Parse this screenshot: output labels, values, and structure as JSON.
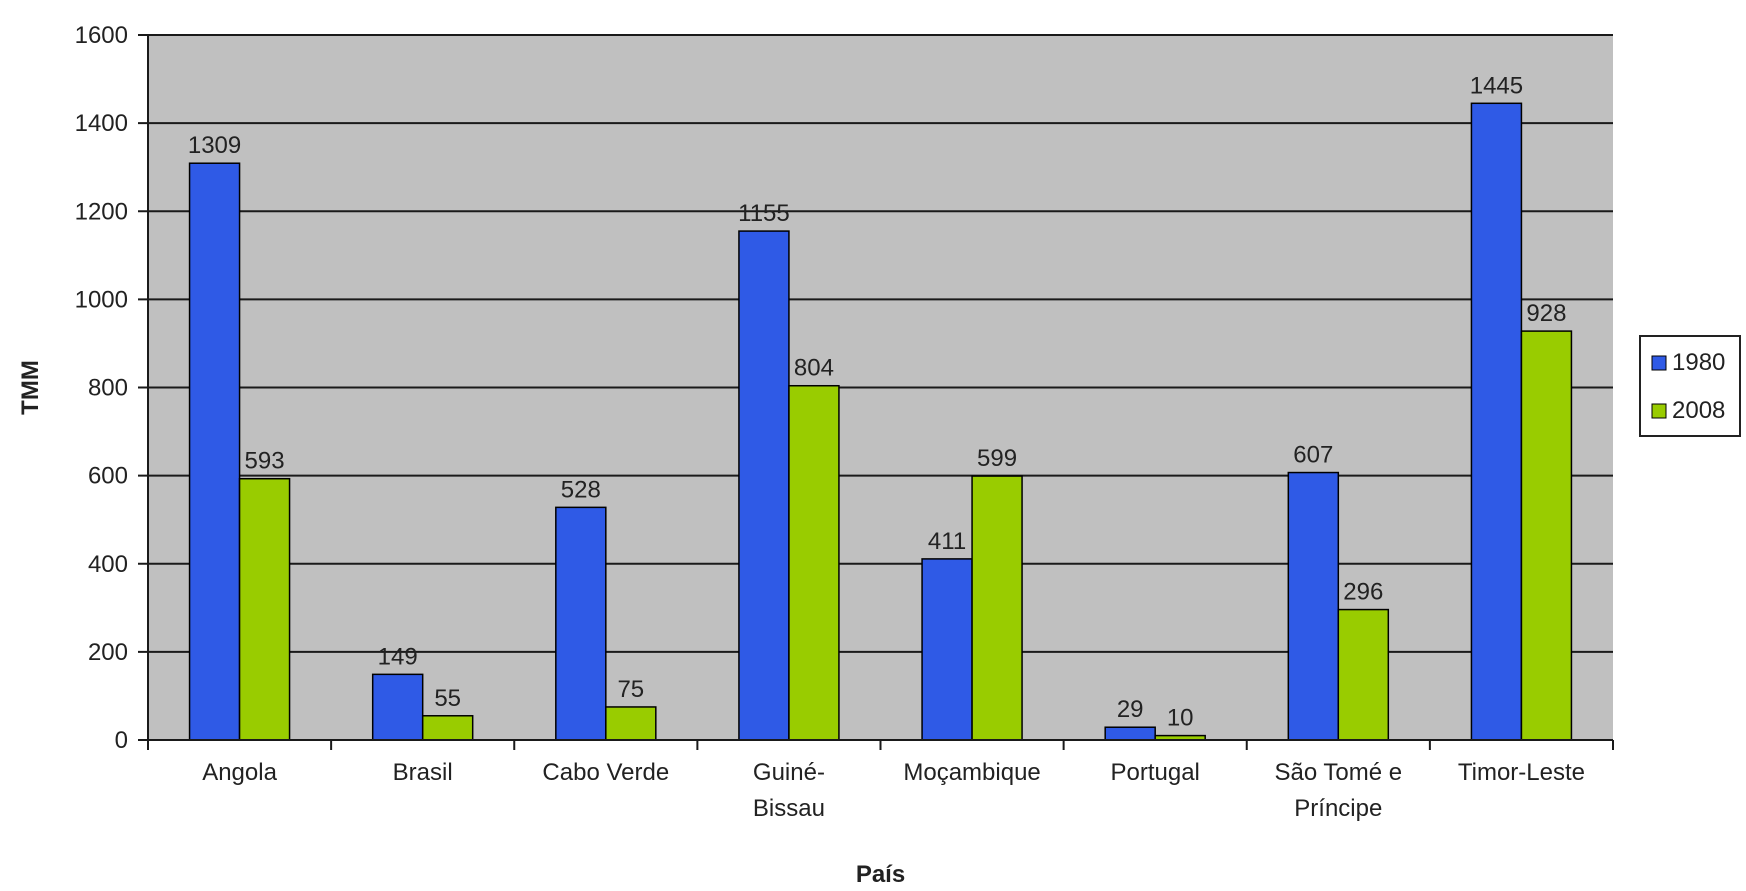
{
  "chart_data": {
    "type": "bar",
    "title": "",
    "xlabel": "País",
    "ylabel": "TMM",
    "ylim": [
      0,
      1600
    ],
    "yticks": [
      0,
      200,
      400,
      600,
      800,
      1000,
      1200,
      1400,
      1600
    ],
    "grid": true,
    "legend_position": "right",
    "categories": [
      [
        "Angola"
      ],
      [
        "Brasil"
      ],
      [
        "Cabo Verde"
      ],
      [
        "Guiné-",
        "Bissau"
      ],
      [
        "Moçambique"
      ],
      [
        "Portugal"
      ],
      [
        "São Tomé e",
        "Príncipe"
      ],
      [
        "Timor-Leste"
      ]
    ],
    "series": [
      {
        "name": "1980",
        "color": "#2f5ae6",
        "values": [
          1309,
          149,
          528,
          1155,
          411,
          29,
          607,
          1445
        ]
      },
      {
        "name": "2008",
        "color": "#99cc00",
        "values": [
          593,
          55,
          75,
          804,
          599,
          10,
          296,
          928
        ]
      }
    ],
    "plot_background": "#c0c0c0"
  }
}
